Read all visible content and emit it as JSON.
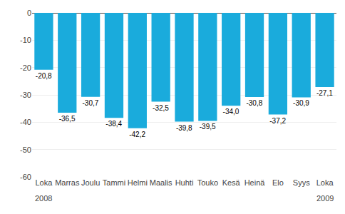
{
  "chart_data": {
    "type": "bar",
    "categories": [
      "Loka",
      "Marras",
      "Joulu",
      "Tammi",
      "Helmi",
      "Maalis",
      "Huhti",
      "Touko",
      "Kesä",
      "Heinä",
      "Elo",
      "Syys",
      "Loka"
    ],
    "values": [
      -20.8,
      -36.5,
      -30.7,
      -38.4,
      -42.2,
      -32.5,
      -39.8,
      -39.5,
      -34.0,
      -30.8,
      -37.2,
      -30.9,
      -27.1
    ],
    "value_labels": [
      "-20,8",
      "-36,5",
      "-30,7",
      "-38,4",
      "-42,2",
      "-32,5",
      "-39,8",
      "-39,5",
      "-34,0",
      "-30,8",
      "-37,2",
      "-30,9",
      "-27,1"
    ],
    "data_labels": true,
    "color": "#1aabdc",
    "ylim": [
      -60,
      0
    ],
    "yticks": [
      0,
      -10,
      -20,
      -30,
      -40,
      -50,
      -60
    ],
    "grid": true,
    "annotations": [
      {
        "text": "2008",
        "x": 0
      },
      {
        "text": "2009",
        "x": 12
      }
    ]
  }
}
